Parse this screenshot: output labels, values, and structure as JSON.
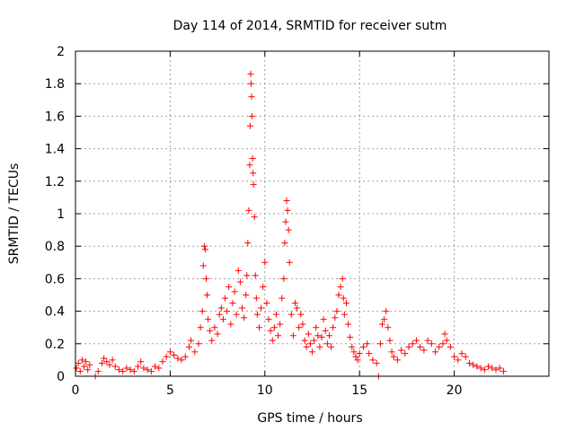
{
  "chart_data": {
    "type": "scatter",
    "title": "Day 114 of 2014, SRMTID for receiver sutm",
    "xlabel": "GPS time / hours",
    "ylabel": "SRMTID / TECUs",
    "xlim": [
      0,
      25
    ],
    "ylim": [
      0,
      2
    ],
    "x_ticks": [
      0,
      5,
      10,
      15,
      20
    ],
    "y_ticks": [
      0,
      0.2,
      0.4,
      0.6,
      0.8,
      1,
      1.2,
      1.4,
      1.6,
      1.8,
      2
    ],
    "x_tick_labels": [
      "0",
      "5",
      "10",
      "15",
      "20"
    ],
    "y_tick_labels": [
      "0",
      "0.2",
      "0.4",
      "0.6",
      "0.8",
      "1",
      "1.2",
      "1.4",
      "1.6",
      "1.8",
      "2"
    ],
    "grid": true,
    "marker": "+",
    "color": "#ff0000",
    "series": [
      {
        "name": "SRMTID",
        "points": [
          [
            0.05,
            0.05
          ],
          [
            0.15,
            0.08
          ],
          [
            0.25,
            0.03
          ],
          [
            0.35,
            0.1
          ],
          [
            0.45,
            0.06
          ],
          [
            0.55,
            0.09
          ],
          [
            0.65,
            0.04
          ],
          [
            0.75,
            0.07
          ],
          [
            1.05,
            0.0
          ],
          [
            1.2,
            0.03
          ],
          [
            1.4,
            0.08
          ],
          [
            1.5,
            0.11
          ],
          [
            1.65,
            0.09
          ],
          [
            1.8,
            0.07
          ],
          [
            1.95,
            0.1
          ],
          [
            2.1,
            0.06
          ],
          [
            2.3,
            0.04
          ],
          [
            2.5,
            0.03
          ],
          [
            2.7,
            0.05
          ],
          [
            2.9,
            0.04
          ],
          [
            3.1,
            0.03
          ],
          [
            3.3,
            0.06
          ],
          [
            3.45,
            0.09
          ],
          [
            3.6,
            0.05
          ],
          [
            3.8,
            0.04
          ],
          [
            4.0,
            0.03
          ],
          [
            4.2,
            0.06
          ],
          [
            4.4,
            0.05
          ],
          [
            4.6,
            0.09
          ],
          [
            4.8,
            0.12
          ],
          [
            5.0,
            0.15
          ],
          [
            5.2,
            0.13
          ],
          [
            5.4,
            0.11
          ],
          [
            5.6,
            0.1
          ],
          [
            5.8,
            0.12
          ],
          [
            6.0,
            0.18
          ],
          [
            6.1,
            0.22
          ],
          [
            6.3,
            0.15
          ],
          [
            6.5,
            0.2
          ],
          [
            6.6,
            0.3
          ],
          [
            6.7,
            0.4
          ],
          [
            6.75,
            0.68
          ],
          [
            6.8,
            0.8
          ],
          [
            6.85,
            0.78
          ],
          [
            6.9,
            0.6
          ],
          [
            6.95,
            0.5
          ],
          [
            7.0,
            0.35
          ],
          [
            7.1,
            0.28
          ],
          [
            7.2,
            0.22
          ],
          [
            7.35,
            0.3
          ],
          [
            7.5,
            0.26
          ],
          [
            7.6,
            0.38
          ],
          [
            7.7,
            0.42
          ],
          [
            7.8,
            0.35
          ],
          [
            7.9,
            0.48
          ],
          [
            8.0,
            0.4
          ],
          [
            8.1,
            0.55
          ],
          [
            8.2,
            0.32
          ],
          [
            8.3,
            0.45
          ],
          [
            8.4,
            0.52
          ],
          [
            8.5,
            0.38
          ],
          [
            8.6,
            0.65
          ],
          [
            8.7,
            0.58
          ],
          [
            8.8,
            0.42
          ],
          [
            8.9,
            0.36
          ],
          [
            9.0,
            0.5
          ],
          [
            9.05,
            0.62
          ],
          [
            9.1,
            0.82
          ],
          [
            9.15,
            1.02
          ],
          [
            9.2,
            1.3
          ],
          [
            9.22,
            1.54
          ],
          [
            9.25,
            1.86
          ],
          [
            9.27,
            1.8
          ],
          [
            9.3,
            1.72
          ],
          [
            9.32,
            1.6
          ],
          [
            9.35,
            1.34
          ],
          [
            9.38,
            1.25
          ],
          [
            9.4,
            1.18
          ],
          [
            9.45,
            0.98
          ],
          [
            9.5,
            0.62
          ],
          [
            9.55,
            0.48
          ],
          [
            9.6,
            0.38
          ],
          [
            9.7,
            0.3
          ],
          [
            9.8,
            0.42
          ],
          [
            9.9,
            0.55
          ],
          [
            10.0,
            0.7
          ],
          [
            10.1,
            0.45
          ],
          [
            10.2,
            0.35
          ],
          [
            10.3,
            0.28
          ],
          [
            10.4,
            0.22
          ],
          [
            10.5,
            0.3
          ],
          [
            10.6,
            0.38
          ],
          [
            10.7,
            0.25
          ],
          [
            10.8,
            0.32
          ],
          [
            10.9,
            0.48
          ],
          [
            11.0,
            0.6
          ],
          [
            11.05,
            0.82
          ],
          [
            11.1,
            0.95
          ],
          [
            11.15,
            1.08
          ],
          [
            11.2,
            1.02
          ],
          [
            11.25,
            0.9
          ],
          [
            11.3,
            0.7
          ],
          [
            11.4,
            0.38
          ],
          [
            11.5,
            0.25
          ],
          [
            11.6,
            0.45
          ],
          [
            11.7,
            0.42
          ],
          [
            11.8,
            0.3
          ],
          [
            11.9,
            0.38
          ],
          [
            12.0,
            0.32
          ],
          [
            12.1,
            0.22
          ],
          [
            12.2,
            0.18
          ],
          [
            12.3,
            0.26
          ],
          [
            12.4,
            0.2
          ],
          [
            12.5,
            0.15
          ],
          [
            12.6,
            0.22
          ],
          [
            12.7,
            0.3
          ],
          [
            12.8,
            0.25
          ],
          [
            12.9,
            0.18
          ],
          [
            13.0,
            0.24
          ],
          [
            13.1,
            0.35
          ],
          [
            13.2,
            0.28
          ],
          [
            13.3,
            0.2
          ],
          [
            13.4,
            0.25
          ],
          [
            13.5,
            0.18
          ],
          [
            13.6,
            0.3
          ],
          [
            13.7,
            0.36
          ],
          [
            13.8,
            0.4
          ],
          [
            13.9,
            0.5
          ],
          [
            14.0,
            0.55
          ],
          [
            14.1,
            0.6
          ],
          [
            14.15,
            0.48
          ],
          [
            14.2,
            0.38
          ],
          [
            14.3,
            0.45
          ],
          [
            14.4,
            0.32
          ],
          [
            14.5,
            0.24
          ],
          [
            14.6,
            0.18
          ],
          [
            14.7,
            0.15
          ],
          [
            14.8,
            0.12
          ],
          [
            14.9,
            0.1
          ],
          [
            15.0,
            0.14
          ],
          [
            15.2,
            0.18
          ],
          [
            15.4,
            0.2
          ],
          [
            15.5,
            0.14
          ],
          [
            15.7,
            0.1
          ],
          [
            15.9,
            0.08
          ],
          [
            16.0,
            0.0
          ],
          [
            16.1,
            0.2
          ],
          [
            16.2,
            0.32
          ],
          [
            16.3,
            0.35
          ],
          [
            16.4,
            0.4
          ],
          [
            16.5,
            0.3
          ],
          [
            16.6,
            0.22
          ],
          [
            16.7,
            0.15
          ],
          [
            16.8,
            0.12
          ],
          [
            17.0,
            0.1
          ],
          [
            17.2,
            0.16
          ],
          [
            17.4,
            0.14
          ],
          [
            17.6,
            0.18
          ],
          [
            17.8,
            0.2
          ],
          [
            18.0,
            0.22
          ],
          [
            18.2,
            0.18
          ],
          [
            18.4,
            0.16
          ],
          [
            18.6,
            0.22
          ],
          [
            18.8,
            0.2
          ],
          [
            19.0,
            0.15
          ],
          [
            19.2,
            0.18
          ],
          [
            19.4,
            0.2
          ],
          [
            19.5,
            0.26
          ],
          [
            19.6,
            0.22
          ],
          [
            19.8,
            0.18
          ],
          [
            20.0,
            0.12
          ],
          [
            20.2,
            0.1
          ],
          [
            20.4,
            0.14
          ],
          [
            20.6,
            0.12
          ],
          [
            20.8,
            0.08
          ],
          [
            21.0,
            0.07
          ],
          [
            21.2,
            0.06
          ],
          [
            21.4,
            0.05
          ],
          [
            21.6,
            0.04
          ],
          [
            21.8,
            0.06
          ],
          [
            22.0,
            0.05
          ],
          [
            22.2,
            0.04
          ],
          [
            22.4,
            0.05
          ],
          [
            22.6,
            0.03
          ]
        ]
      }
    ]
  }
}
